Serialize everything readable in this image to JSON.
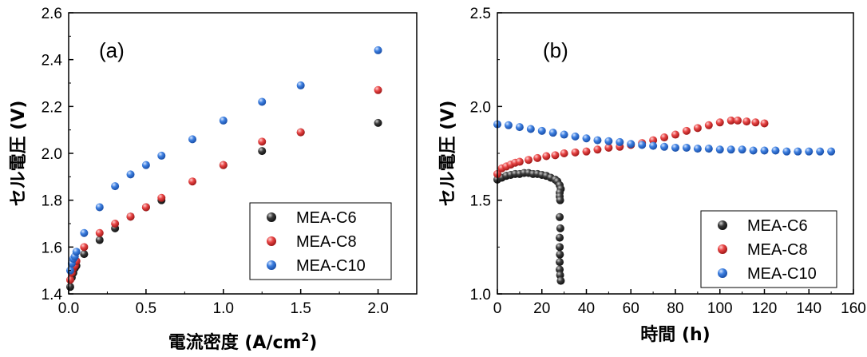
{
  "chart_data": [
    {
      "type": "scatter",
      "panel_label": "(a)",
      "xlabel": "電流密度 (A/cm",
      "xlabel_sup": "2",
      "xlabel_tail": ")",
      "ylabel": "セル電圧 (V)",
      "xlim": [
        0,
        2.25
      ],
      "ylim": [
        1.4,
        2.6
      ],
      "xticks": [
        "0.0",
        "0.5",
        "1.0",
        "1.5",
        "2.0"
      ],
      "yticks": [
        "1.4",
        "1.6",
        "1.8",
        "2.0",
        "2.2",
        "2.4",
        "2.6"
      ],
      "legend_position": "bottom-right",
      "series": [
        {
          "name": "MEA-C6",
          "color": "#3a3a3a",
          "x": [
            0.01,
            0.02,
            0.03,
            0.04,
            0.05,
            0.1,
            0.2,
            0.3,
            0.4,
            0.5,
            0.6,
            1.0,
            1.25,
            1.5,
            2.0
          ],
          "y": [
            1.43,
            1.47,
            1.49,
            1.51,
            1.52,
            1.57,
            1.63,
            1.68,
            1.73,
            1.77,
            1.8,
            1.95,
            2.01,
            2.09,
            2.13
          ]
        },
        {
          "name": "MEA-C8",
          "color": "#e84545",
          "x": [
            0.01,
            0.02,
            0.03,
            0.04,
            0.05,
            0.1,
            0.2,
            0.3,
            0.4,
            0.5,
            0.6,
            0.8,
            1.0,
            1.25,
            1.5,
            2.0
          ],
          "y": [
            1.46,
            1.49,
            1.51,
            1.52,
            1.54,
            1.6,
            1.66,
            1.7,
            1.73,
            1.77,
            1.81,
            1.88,
            1.95,
            2.05,
            2.09,
            2.27
          ]
        },
        {
          "name": "MEA-C10",
          "color": "#3d7fe0",
          "x": [
            0.01,
            0.02,
            0.03,
            0.04,
            0.05,
            0.1,
            0.2,
            0.3,
            0.4,
            0.5,
            0.6,
            0.8,
            1.0,
            1.25,
            1.5,
            2.0
          ],
          "y": [
            1.5,
            1.53,
            1.55,
            1.56,
            1.58,
            1.66,
            1.77,
            1.86,
            1.91,
            1.95,
            1.99,
            2.06,
            2.14,
            2.22,
            2.29,
            2.44
          ]
        }
      ]
    },
    {
      "type": "scatter",
      "panel_label": "(b)",
      "xlabel": "時間 (h)",
      "ylabel": "セル電圧 (V)",
      "xlim": [
        0,
        160
      ],
      "ylim": [
        1.0,
        2.5
      ],
      "xticks": [
        "0",
        "20",
        "40",
        "60",
        "80",
        "100",
        "120",
        "140",
        "160"
      ],
      "yticks": [
        "1.0",
        "1.5",
        "2.0",
        "2.5"
      ],
      "legend_position": "bottom-right",
      "series": [
        {
          "name": "MEA-C6",
          "color": "#2a2a2a",
          "x": [
            0,
            2,
            4,
            6,
            8,
            10,
            12,
            14,
            16,
            18,
            20,
            22,
            24,
            26,
            27,
            28,
            28.5,
            28,
            28,
            28.2,
            28,
            28.3,
            28,
            28,
            28.1,
            28,
            28,
            28.2,
            28.5
          ],
          "y": [
            1.61,
            1.62,
            1.63,
            1.635,
            1.64,
            1.64,
            1.645,
            1.645,
            1.64,
            1.64,
            1.635,
            1.63,
            1.62,
            1.61,
            1.6,
            1.58,
            1.56,
            1.54,
            1.52,
            1.5,
            1.41,
            1.35,
            1.3,
            1.25,
            1.21,
            1.17,
            1.13,
            1.1,
            1.07
          ]
        },
        {
          "name": "MEA-C8",
          "color": "#e84545",
          "x": [
            0,
            2,
            4,
            6,
            8,
            10,
            14,
            18,
            22,
            26,
            30,
            35,
            40,
            45,
            50,
            55,
            60,
            65,
            70,
            75,
            80,
            85,
            90,
            95,
            100,
            105,
            108,
            112,
            116,
            120
          ],
          "y": [
            1.64,
            1.67,
            1.68,
            1.69,
            1.7,
            1.705,
            1.715,
            1.725,
            1.735,
            1.74,
            1.75,
            1.755,
            1.76,
            1.77,
            1.78,
            1.785,
            1.795,
            1.805,
            1.82,
            1.835,
            1.85,
            1.87,
            1.885,
            1.9,
            1.915,
            1.925,
            1.925,
            1.92,
            1.915,
            1.91
          ]
        },
        {
          "name": "MEA-C10",
          "color": "#3d7fe0",
          "x": [
            0,
            5,
            10,
            15,
            20,
            25,
            30,
            35,
            40,
            45,
            50,
            55,
            60,
            65,
            70,
            75,
            80,
            85,
            90,
            95,
            100,
            105,
            110,
            115,
            120,
            125,
            130,
            135,
            140,
            145,
            150
          ],
          "y": [
            1.905,
            1.9,
            1.89,
            1.88,
            1.87,
            1.86,
            1.85,
            1.84,
            1.83,
            1.82,
            1.815,
            1.81,
            1.8,
            1.795,
            1.79,
            1.785,
            1.78,
            1.78,
            1.775,
            1.775,
            1.77,
            1.77,
            1.77,
            1.765,
            1.765,
            1.765,
            1.76,
            1.76,
            1.76,
            1.76,
            1.76
          ]
        }
      ]
    }
  ]
}
